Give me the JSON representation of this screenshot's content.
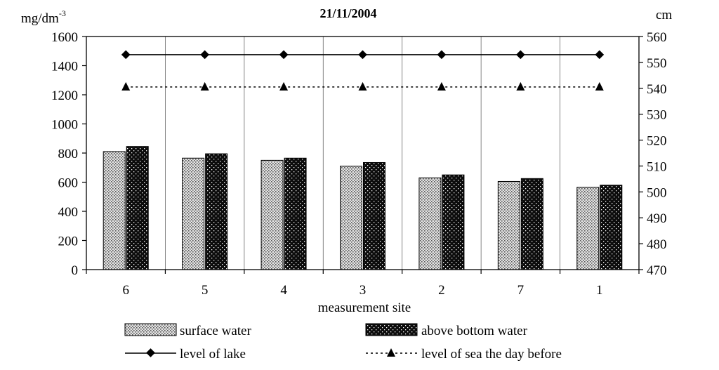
{
  "chart_data": {
    "type": "bar",
    "title": "21/11/2004",
    "xlabel": "measurement site",
    "ylabel_left": "mg/dm",
    "ylabel_left_sup": "-3",
    "ylabel_right": "cm",
    "categories": [
      "6",
      "5",
      "4",
      "3",
      "2",
      "7",
      "1"
    ],
    "ylim_left": [
      0,
      1600
    ],
    "yticks_left": [
      0,
      200,
      400,
      600,
      800,
      1000,
      1200,
      1400,
      1600
    ],
    "ylim_right": [
      470,
      560
    ],
    "yticks_right": [
      470,
      480,
      490,
      500,
      510,
      520,
      530,
      540,
      550,
      560
    ],
    "series": [
      {
        "name": "surface water",
        "type": "bar",
        "axis": "left",
        "pattern": "fine-dots",
        "values": [
          810,
          765,
          750,
          710,
          630,
          605,
          565
        ]
      },
      {
        "name": "above bottom water",
        "type": "bar",
        "axis": "left",
        "pattern": "dark-dots",
        "values": [
          845,
          795,
          765,
          735,
          650,
          625,
          580
        ]
      },
      {
        "name": "level of lake",
        "type": "line",
        "axis": "right",
        "marker": "diamond",
        "line": "solid",
        "values": [
          553,
          553,
          553,
          553,
          553,
          553,
          553
        ]
      },
      {
        "name": "level of sea the day before",
        "type": "line",
        "axis": "right",
        "marker": "triangle",
        "line": "dotted",
        "values": [
          540.5,
          540.5,
          540.5,
          540.5,
          540.5,
          540.5,
          540.5
        ]
      }
    ],
    "grid": "vertical-category-separators",
    "legend_position": "bottom"
  }
}
